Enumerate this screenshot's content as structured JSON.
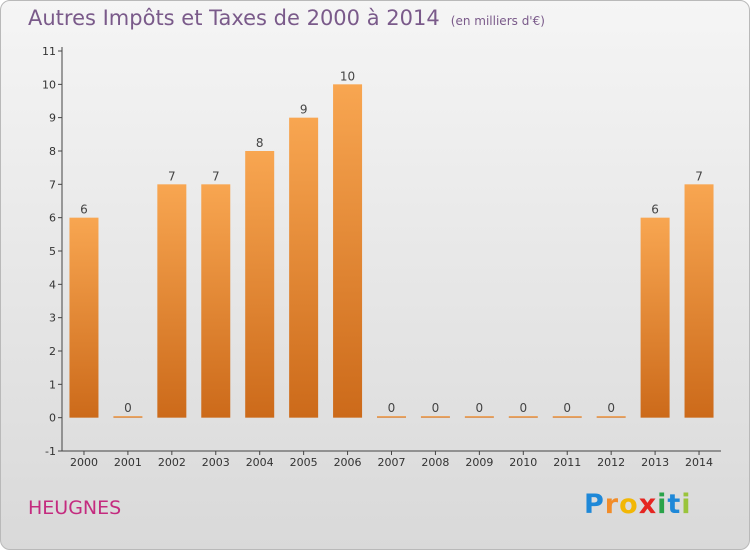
{
  "title": "Autres Impôts et Taxes de 2000 à 2014",
  "unit": "(en milliers d'€)",
  "commune": "HEUGNES",
  "logo": {
    "letters": [
      "P",
      "r",
      "o",
      "x",
      "i",
      "t",
      "i"
    ],
    "colors": [
      "#1e88d8",
      "#f28c28",
      "#f2b705",
      "#e52521",
      "#2aa34a",
      "#1e88d8",
      "#9ac43c"
    ]
  },
  "colors": {
    "bar_top": "#f8a651",
    "bar_bottom": "#cc6a1a",
    "title": "#7a5a8a",
    "commune": "#c42b7f"
  },
  "chart_data": {
    "type": "bar",
    "categories": [
      "2000",
      "2001",
      "2002",
      "2003",
      "2004",
      "2005",
      "2006",
      "2007",
      "2008",
      "2009",
      "2010",
      "2011",
      "2012",
      "2013",
      "2014"
    ],
    "values": [
      6,
      0,
      7,
      7,
      8,
      9,
      10,
      0,
      0,
      0,
      0,
      0,
      0,
      6,
      7
    ],
    "y_ticks": [
      "-1",
      "0",
      "1",
      "2",
      "3",
      "4",
      "5",
      "6",
      "7",
      "8",
      "9",
      "10",
      "11"
    ],
    "ylim": [
      -1,
      11
    ],
    "grid": false
  }
}
